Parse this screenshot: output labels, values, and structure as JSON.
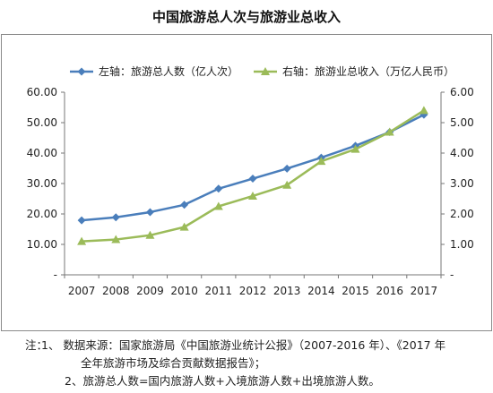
{
  "chart_data": {
    "type": "line",
    "title": "中国旅游总人次与旅游业总收入",
    "categories": [
      "2007",
      "2008",
      "2009",
      "2010",
      "2011",
      "2012",
      "2013",
      "2014",
      "2015",
      "2016",
      "2017"
    ],
    "series": [
      {
        "name": "左轴：旅游总人数（亿人次）",
        "axis": "left",
        "color": "#4a7ebb",
        "marker": "diamond",
        "values": [
          17.9,
          18.9,
          20.6,
          23.0,
          28.3,
          31.6,
          34.9,
          38.5,
          42.4,
          46.9,
          52.6
        ]
      },
      {
        "name": "右轴：旅游业总收入（万亿人民币）",
        "axis": "right",
        "color": "#9bbb59",
        "marker": "triangle",
        "values": [
          1.1,
          1.16,
          1.3,
          1.57,
          2.25,
          2.59,
          2.95,
          3.73,
          4.13,
          4.69,
          5.4
        ]
      }
    ],
    "y_left": {
      "min": 0,
      "max": 60,
      "ticks": [
        "-",
        "10.00",
        "20.00",
        "30.00",
        "40.00",
        "50.00",
        "60.00"
      ]
    },
    "y_right": {
      "min": 0,
      "max": 6,
      "ticks": [
        "-",
        "1.00",
        "2.00",
        "3.00",
        "4.00",
        "5.00",
        "6.00"
      ]
    },
    "legend": "top",
    "grid": false
  },
  "notes": {
    "prefix": "注：",
    "line1": "1、 数据来源：国家旅游局《中国旅游业统计公报》（2007-2016 年）、《2017 年",
    "line1b": "全年旅游市场及综合贡献数据报告》；",
    "line2": "2、旅游总人数=国内旅游人数+入境旅游人数+出境旅游人数。"
  }
}
